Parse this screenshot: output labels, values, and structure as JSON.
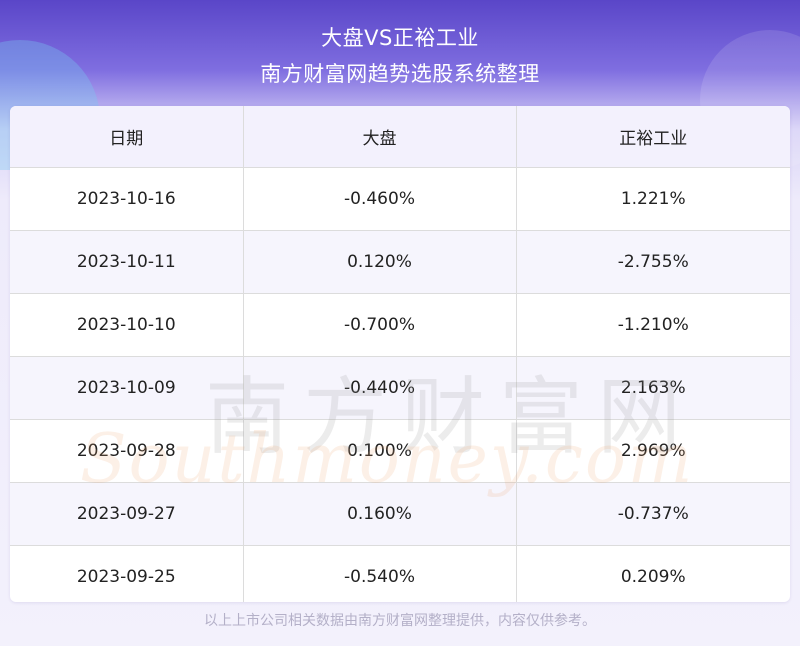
{
  "header": {
    "title": "大盘VS正裕工业",
    "subtitle": "南方财富网趋势选股系统整理"
  },
  "table": {
    "columns": [
      "日期",
      "大盘",
      "正裕工业"
    ],
    "rows": [
      [
        "2023-10-16",
        "-0.460%",
        "1.221%"
      ],
      [
        "2023-10-11",
        "0.120%",
        "-2.755%"
      ],
      [
        "2023-10-10",
        "-0.700%",
        "-1.210%"
      ],
      [
        "2023-10-09",
        "-0.440%",
        "2.163%"
      ],
      [
        "2023-09-28",
        "0.100%",
        "2.969%"
      ],
      [
        "2023-09-27",
        "0.160%",
        "-0.737%"
      ],
      [
        "2023-09-25",
        "-0.540%",
        "0.209%"
      ]
    ]
  },
  "watermark": {
    "cn": "南方财富网",
    "en": "Southmoney.com"
  },
  "footer": {
    "note": "以上上市公司相关数据由南方财富网整理提供，内容仅供参考。"
  }
}
